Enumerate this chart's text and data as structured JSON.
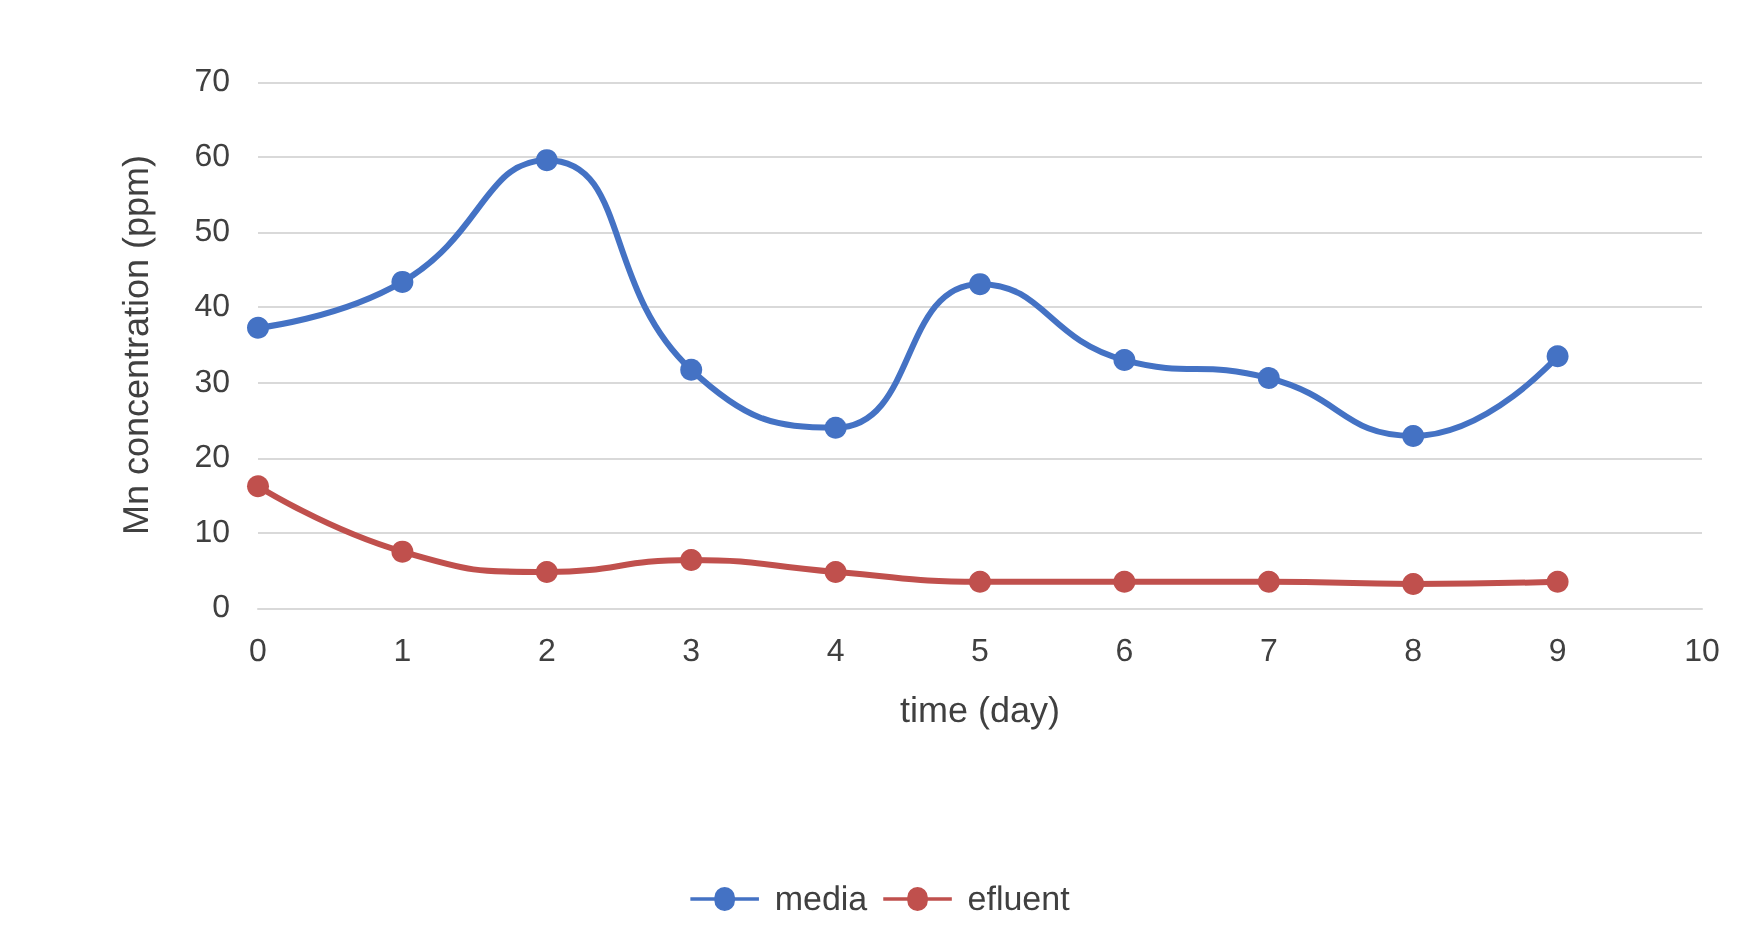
{
  "chart_data": {
    "type": "line",
    "xlabel": "time (day)",
    "ylabel": "Mn concentration (ppm)",
    "x": [
      0,
      1,
      2,
      3,
      4,
      5,
      6,
      7,
      8,
      9
    ],
    "series": [
      {
        "name": "media",
        "color": "#4472c4",
        "values": [
          37.3,
          43.4,
          59.6,
          31.7,
          24.0,
          43.1,
          33.0,
          30.6,
          22.9,
          33.5
        ]
      },
      {
        "name": "efluent",
        "color": "#c0504d",
        "values": [
          16.2,
          7.5,
          4.8,
          6.4,
          4.8,
          3.5,
          3.5,
          3.5,
          3.2,
          3.5
        ]
      }
    ],
    "xlim": [
      0,
      10
    ],
    "xticks": [
      0,
      1,
      2,
      3,
      4,
      5,
      6,
      7,
      8,
      9,
      10
    ],
    "ylim": [
      0,
      70
    ],
    "yticks": [
      0,
      10,
      20,
      30,
      40,
      50,
      60,
      70
    ],
    "grid": "y",
    "legend": "bottom",
    "marker": "circle",
    "line_style": "solid"
  }
}
